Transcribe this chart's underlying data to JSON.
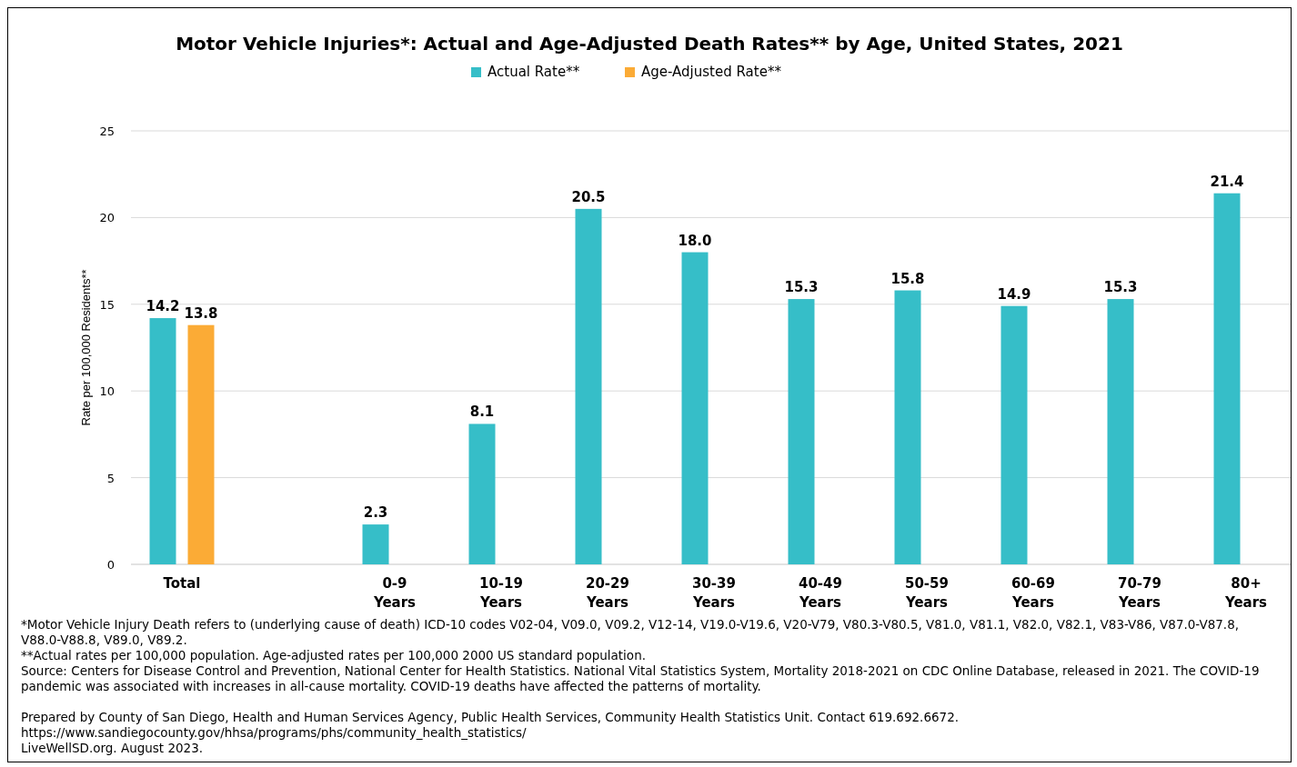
{
  "chart_data": {
    "type": "bar",
    "title": "Motor Vehicle Injuries*: Actual and Age-Adjusted Death Rates** by Age, United States, 2021",
    "ylabel": "Rate per 100,000 Residents**",
    "categories": [
      "Total",
      null,
      "0-9 Years",
      "10-19 Years",
      "20-29 Years",
      "30-39 Years",
      "40-49 Years",
      "50-59 Years",
      "60-69 Years",
      "70-79 Years",
      "80+ Years"
    ],
    "series": [
      {
        "name": "Actual Rate**",
        "color": "#36bec8",
        "values": [
          14.2,
          null,
          2.3,
          8.1,
          20.5,
          18.0,
          15.3,
          15.8,
          14.9,
          15.3,
          21.4
        ],
        "value_labels": [
          "14.2",
          null,
          "2.3",
          "8.1",
          "20.5",
          "18.0",
          "15.3",
          "15.8",
          "14.9",
          "15.3",
          "21.4"
        ]
      },
      {
        "name": "Age-Adjusted Rate**",
        "color": "#fbab36",
        "values": [
          13.8,
          null,
          null,
          null,
          null,
          null,
          null,
          null,
          null,
          null,
          null
        ],
        "value_labels": [
          "13.8",
          null,
          null,
          null,
          null,
          null,
          null,
          null,
          null,
          null,
          null
        ]
      }
    ],
    "ylim": [
      0,
      25
    ],
    "yticks": [
      0,
      5,
      10,
      15,
      20,
      25
    ],
    "grid": "y",
    "legend": "top",
    "annotations": [
      "*Motor Vehicle Injury Death refers to (underlying cause of death) ICD-10 codes V02-04, V09.0, V09.2, V12-14, V19.0-V19.6, V20-V79, V80.3-V80.5, V81.0, V81.1, V82.0, V82.1, V83-V86, V87.0-V87.8, V88.0-V88.8, V89.0, V89.2.",
      "**Actual rates per 100,000 population. Age-adjusted rates per 100,000 2000 US standard population.",
      "Source: Centers for Disease Control and Prevention, National Center for Health Statistics. National Vital Statistics System, Mortality 2018-2021 on CDC Online Database, released in 2021. The COVID-19 pandemic was associated with increases in all-cause mortality. COVID-19 deaths have affected the patterns of mortality.",
      "Prepared by County of San Diego, Health and Human Services Agency, Public Health Services, Community Health Statistics Unit. Contact 619.692.6672.",
      "https://www.sandiegocounty.gov/hhsa/programs/phs/community_health_statistics/",
      "LiveWellSD.org. August 2023."
    ]
  }
}
